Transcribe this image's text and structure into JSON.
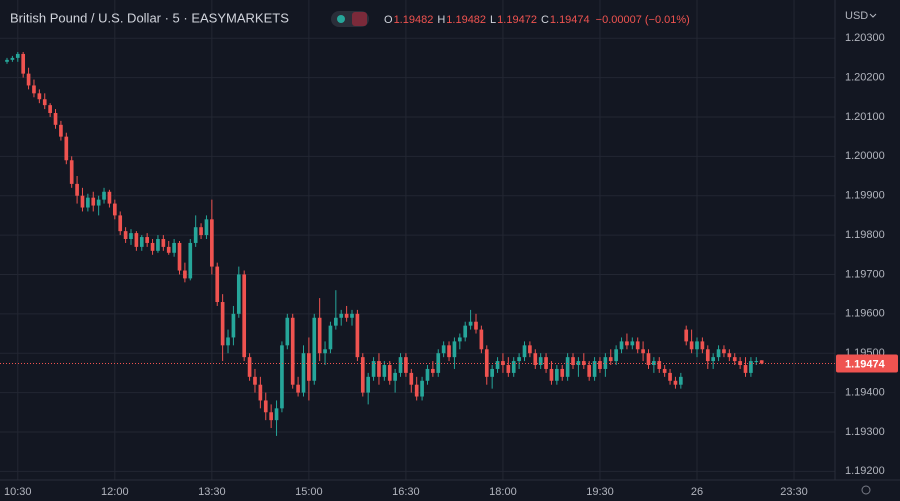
{
  "chart_data": {
    "type": "candlestick",
    "title": "British Pound / U.S. Dollar · 5 · EASYMARKETS",
    "ohlc_legend": [
      {
        "label": "O",
        "value": 1.19482
      },
      {
        "label": "H",
        "value": 1.19482
      },
      {
        "label": "L",
        "value": 1.19472
      },
      {
        "label": "C",
        "value": 1.19474
      }
    ],
    "change": "−0.00007 (−0.01%)",
    "currency": "USD",
    "last_price": 1.19474,
    "up_color": "#26a69a",
    "down_color": "#ef5350",
    "grid": true,
    "xlim": [
      -1.3,
      153.6
    ],
    "xticks": [
      {
        "value": 2,
        "label": "10:30"
      },
      {
        "value": 20,
        "label": "12:00"
      },
      {
        "value": 38,
        "label": "13:30"
      },
      {
        "value": 56,
        "label": "15:00"
      },
      {
        "value": 74,
        "label": "16:30"
      },
      {
        "value": 92,
        "label": "18:00"
      },
      {
        "value": 110,
        "label": "19:30"
      },
      {
        "value": 128,
        "label": "26"
      },
      {
        "value": 146,
        "label": "23:30"
      }
    ],
    "ylim": [
      1.19178,
      1.20397
    ],
    "yticks": [
      {
        "value": 1.192,
        "label": "1.19200"
      },
      {
        "value": 1.193,
        "label": "1.19300"
      },
      {
        "value": 1.194,
        "label": "1.19400"
      },
      {
        "value": 1.195,
        "label": "1.19500"
      },
      {
        "value": 1.196,
        "label": "1.19600"
      },
      {
        "value": 1.197,
        "label": "1.19700"
      },
      {
        "value": 1.198,
        "label": "1.19800"
      },
      {
        "value": 1.199,
        "label": "1.19900"
      },
      {
        "value": 1.2,
        "label": "1.20000"
      },
      {
        "value": 1.201,
        "label": "1.20100"
      },
      {
        "value": 1.202,
        "label": "1.20200"
      },
      {
        "value": 1.203,
        "label": "1.20300"
      }
    ],
    "candles": [
      [
        1.2024,
        1.2025,
        1.20235,
        1.20245
      ],
      [
        1.20245,
        1.20255,
        1.2024,
        1.2025
      ],
      [
        1.2025,
        1.20265,
        1.2024,
        1.2026
      ],
      [
        1.2026,
        1.20265,
        1.202,
        1.2021
      ],
      [
        1.2021,
        1.20225,
        1.2017,
        1.2018
      ],
      [
        1.2018,
        1.20195,
        1.2015,
        1.2016
      ],
      [
        1.2016,
        1.2017,
        1.20135,
        1.20145
      ],
      [
        1.20145,
        1.2016,
        1.2012,
        1.2013
      ],
      [
        1.2013,
        1.20135,
        1.201,
        1.2011
      ],
      [
        1.2011,
        1.2012,
        1.2007,
        1.2008
      ],
      [
        1.2008,
        1.2009,
        1.2004,
        1.2005
      ],
      [
        1.2005,
        1.2006,
        1.1998,
        1.1999
      ],
      [
        1.1999,
        1.2,
        1.1992,
        1.1993
      ],
      [
        1.1993,
        1.1995,
        1.1988,
        1.199
      ],
      [
        1.199,
        1.1992,
        1.1986,
        1.1987
      ],
      [
        1.1987,
        1.19905,
        1.1986,
        1.19895
      ],
      [
        1.19895,
        1.1991,
        1.1986,
        1.19875
      ],
      [
        1.19875,
        1.199,
        1.1985,
        1.1989
      ],
      [
        1.1989,
        1.1992,
        1.1988,
        1.1991
      ],
      [
        1.1991,
        1.19915,
        1.1987,
        1.1988
      ],
      [
        1.1988,
        1.1989,
        1.1984,
        1.1985
      ],
      [
        1.1985,
        1.1986,
        1.198,
        1.1981
      ],
      [
        1.1981,
        1.1982,
        1.1978,
        1.1979
      ],
      [
        1.1979,
        1.19815,
        1.19775,
        1.19805
      ],
      [
        1.19805,
        1.1981,
        1.1976,
        1.1977
      ],
      [
        1.1977,
        1.198,
        1.1976,
        1.19795
      ],
      [
        1.19795,
        1.19805,
        1.1977,
        1.1978
      ],
      [
        1.1978,
        1.1979,
        1.1975,
        1.1976
      ],
      [
        1.1976,
        1.198,
        1.19755,
        1.1979
      ],
      [
        1.1979,
        1.198,
        1.1976,
        1.1977
      ],
      [
        1.1977,
        1.19785,
        1.1975,
        1.19755
      ],
      [
        1.19755,
        1.1979,
        1.19745,
        1.1978
      ],
      [
        1.1978,
        1.19785,
        1.197,
        1.1971
      ],
      [
        1.1971,
        1.1973,
        1.1968,
        1.1969
      ],
      [
        1.1969,
        1.1979,
        1.19685,
        1.1978
      ],
      [
        1.1978,
        1.1985,
        1.1977,
        1.1982
      ],
      [
        1.1982,
        1.1983,
        1.1979,
        1.198
      ],
      [
        1.198,
        1.1985,
        1.1979,
        1.1984
      ],
      [
        1.1984,
        1.1989,
        1.197,
        1.1972
      ],
      [
        1.1972,
        1.1973,
        1.1962,
        1.1963
      ],
      [
        1.1963,
        1.1965,
        1.1948,
        1.1952
      ],
      [
        1.1952,
        1.1956,
        1.195,
        1.1954
      ],
      [
        1.1954,
        1.1962,
        1.1952,
        1.196
      ],
      [
        1.196,
        1.1972,
        1.1959,
        1.197
      ],
      [
        1.197,
        1.1971,
        1.1948,
        1.1949
      ],
      [
        1.1949,
        1.195,
        1.1943,
        1.1944
      ],
      [
        1.1944,
        1.1946,
        1.194,
        1.1942
      ],
      [
        1.1942,
        1.1944,
        1.1936,
        1.1938
      ],
      [
        1.1938,
        1.194,
        1.1933,
        1.1935
      ],
      [
        1.1935,
        1.1937,
        1.1931,
        1.1933
      ],
      [
        1.1933,
        1.1938,
        1.1929,
        1.1936
      ],
      [
        1.1936,
        1.1953,
        1.1935,
        1.1952
      ],
      [
        1.1952,
        1.196,
        1.1951,
        1.1959
      ],
      [
        1.1959,
        1.196,
        1.1941,
        1.1942
      ],
      [
        1.1942,
        1.1944,
        1.1939,
        1.194
      ],
      [
        1.194,
        1.1952,
        1.1939,
        1.195
      ],
      [
        1.195,
        1.1954,
        1.1938,
        1.1943
      ],
      [
        1.1943,
        1.196,
        1.1942,
        1.1959
      ],
      [
        1.1959,
        1.1964,
        1.1948,
        1.195
      ],
      [
        1.195,
        1.1953,
        1.1947,
        1.1951
      ],
      [
        1.1951,
        1.1958,
        1.195,
        1.1957
      ],
      [
        1.1957,
        1.1966,
        1.1956,
        1.1959
      ],
      [
        1.1959,
        1.1961,
        1.1957,
        1.196
      ],
      [
        1.196,
        1.1962,
        1.1958,
        1.1959
      ],
      [
        1.1959,
        1.1961,
        1.1957,
        1.196
      ],
      [
        1.196,
        1.1961,
        1.1948,
        1.1949
      ],
      [
        1.1949,
        1.195,
        1.1939,
        1.194
      ],
      [
        1.194,
        1.1945,
        1.1937,
        1.1944
      ],
      [
        1.1944,
        1.1949,
        1.1943,
        1.1948
      ],
      [
        1.1948,
        1.195,
        1.1942,
        1.1944
      ],
      [
        1.1944,
        1.1948,
        1.1943,
        1.1947
      ],
      [
        1.1947,
        1.1948,
        1.1942,
        1.1943
      ],
      [
        1.1943,
        1.1946,
        1.194,
        1.1945
      ],
      [
        1.1945,
        1.195,
        1.1944,
        1.1949
      ],
      [
        1.1949,
        1.195,
        1.1944,
        1.1945
      ],
      [
        1.1945,
        1.1946,
        1.194,
        1.1942
      ],
      [
        1.1942,
        1.1944,
        1.1938,
        1.1939
      ],
      [
        1.1939,
        1.1944,
        1.1938,
        1.1943
      ],
      [
        1.1943,
        1.1947,
        1.1942,
        1.1946
      ],
      [
        1.1946,
        1.1948,
        1.1944,
        1.1945
      ],
      [
        1.1945,
        1.1951,
        1.1944,
        1.195
      ],
      [
        1.195,
        1.1953,
        1.1949,
        1.1952
      ],
      [
        1.1952,
        1.1953,
        1.1948,
        1.1949
      ],
      [
        1.1949,
        1.1954,
        1.1946,
        1.1953
      ],
      [
        1.1953,
        1.1955,
        1.1951,
        1.1954
      ],
      [
        1.1954,
        1.1958,
        1.1953,
        1.1957
      ],
      [
        1.1957,
        1.1961,
        1.1956,
        1.1958
      ],
      [
        1.1958,
        1.196,
        1.1955,
        1.1956
      ],
      [
        1.1956,
        1.1957,
        1.195,
        1.1951
      ],
      [
        1.1951,
        1.1952,
        1.1942,
        1.1944
      ],
      [
        1.1944,
        1.1947,
        1.1941,
        1.1946
      ],
      [
        1.1946,
        1.1949,
        1.1945,
        1.1948
      ],
      [
        1.1948,
        1.195,
        1.1945,
        1.1947
      ],
      [
        1.1947,
        1.1949,
        1.1944,
        1.1945
      ],
      [
        1.1945,
        1.1949,
        1.1944,
        1.1948
      ],
      [
        1.1948,
        1.195,
        1.1946,
        1.1949
      ],
      [
        1.1949,
        1.1953,
        1.1948,
        1.1952
      ],
      [
        1.1952,
        1.1953,
        1.1949,
        1.195
      ],
      [
        1.195,
        1.1951,
        1.1946,
        1.1947
      ],
      [
        1.1947,
        1.195,
        1.1946,
        1.1949
      ],
      [
        1.1949,
        1.195,
        1.1945,
        1.1946
      ],
      [
        1.1946,
        1.1948,
        1.1942,
        1.1943
      ],
      [
        1.1943,
        1.1947,
        1.1942,
        1.1946
      ],
      [
        1.1946,
        1.1947,
        1.1943,
        1.1944
      ],
      [
        1.1944,
        1.195,
        1.1943,
        1.1949
      ],
      [
        1.1949,
        1.195,
        1.1946,
        1.1947
      ],
      [
        1.1947,
        1.1949,
        1.1944,
        1.1948
      ],
      [
        1.1948,
        1.195,
        1.1946,
        1.1947
      ],
      [
        1.1947,
        1.1948,
        1.1943,
        1.1944
      ],
      [
        1.1944,
        1.1949,
        1.1943,
        1.1948
      ],
      [
        1.1948,
        1.1949,
        1.1945,
        1.1946
      ],
      [
        1.1946,
        1.195,
        1.1944,
        1.1949
      ],
      [
        1.1949,
        1.1951,
        1.1947,
        1.1948
      ],
      [
        1.1948,
        1.1952,
        1.1947,
        1.1951
      ],
      [
        1.1951,
        1.1954,
        1.195,
        1.1953
      ],
      [
        1.1953,
        1.1955,
        1.1951,
        1.1952
      ],
      [
        1.1952,
        1.1954,
        1.1951,
        1.1953
      ],
      [
        1.1953,
        1.1954,
        1.195,
        1.1951
      ],
      [
        1.1951,
        1.1953,
        1.1948,
        1.195
      ],
      [
        1.195,
        1.1951,
        1.1946,
        1.1947
      ],
      [
        1.1947,
        1.1949,
        1.1945,
        1.1948
      ],
      [
        1.1948,
        1.1949,
        1.1945,
        1.1946
      ],
      [
        1.1946,
        1.1947,
        1.1944,
        1.1945
      ],
      [
        1.1945,
        1.1946,
        1.1942,
        1.1943
      ],
      [
        1.1943,
        1.1944,
        1.1941,
        1.1942
      ],
      [
        1.1942,
        1.1945,
        1.1941,
        1.1944
      ],
      [
        1.1956,
        1.1957,
        1.1952,
        1.1953
      ],
      [
        1.1953,
        1.1956,
        1.195,
        1.1951
      ],
      [
        1.1951,
        1.1954,
        1.1949,
        1.1953
      ],
      [
        1.1953,
        1.1954,
        1.195,
        1.1951
      ],
      [
        1.1951,
        1.1952,
        1.1946,
        1.1948
      ],
      [
        1.1948,
        1.195,
        1.1946,
        1.1949
      ],
      [
        1.1949,
        1.1952,
        1.1948,
        1.1951
      ],
      [
        1.1951,
        1.1952,
        1.1949,
        1.195
      ],
      [
        1.195,
        1.1951,
        1.1948,
        1.1949
      ],
      [
        1.1949,
        1.195,
        1.1947,
        1.1948
      ],
      [
        1.1948,
        1.1949,
        1.1946,
        1.1947
      ],
      [
        1.1947,
        1.1949,
        1.1944,
        1.1945
      ],
      [
        1.1945,
        1.1949,
        1.1944,
        1.1948
      ],
      [
        1.1948,
        1.1949,
        1.1947,
        1.1948
      ],
      [
        1.19482,
        1.19482,
        1.19472,
        1.19474
      ]
    ]
  }
}
